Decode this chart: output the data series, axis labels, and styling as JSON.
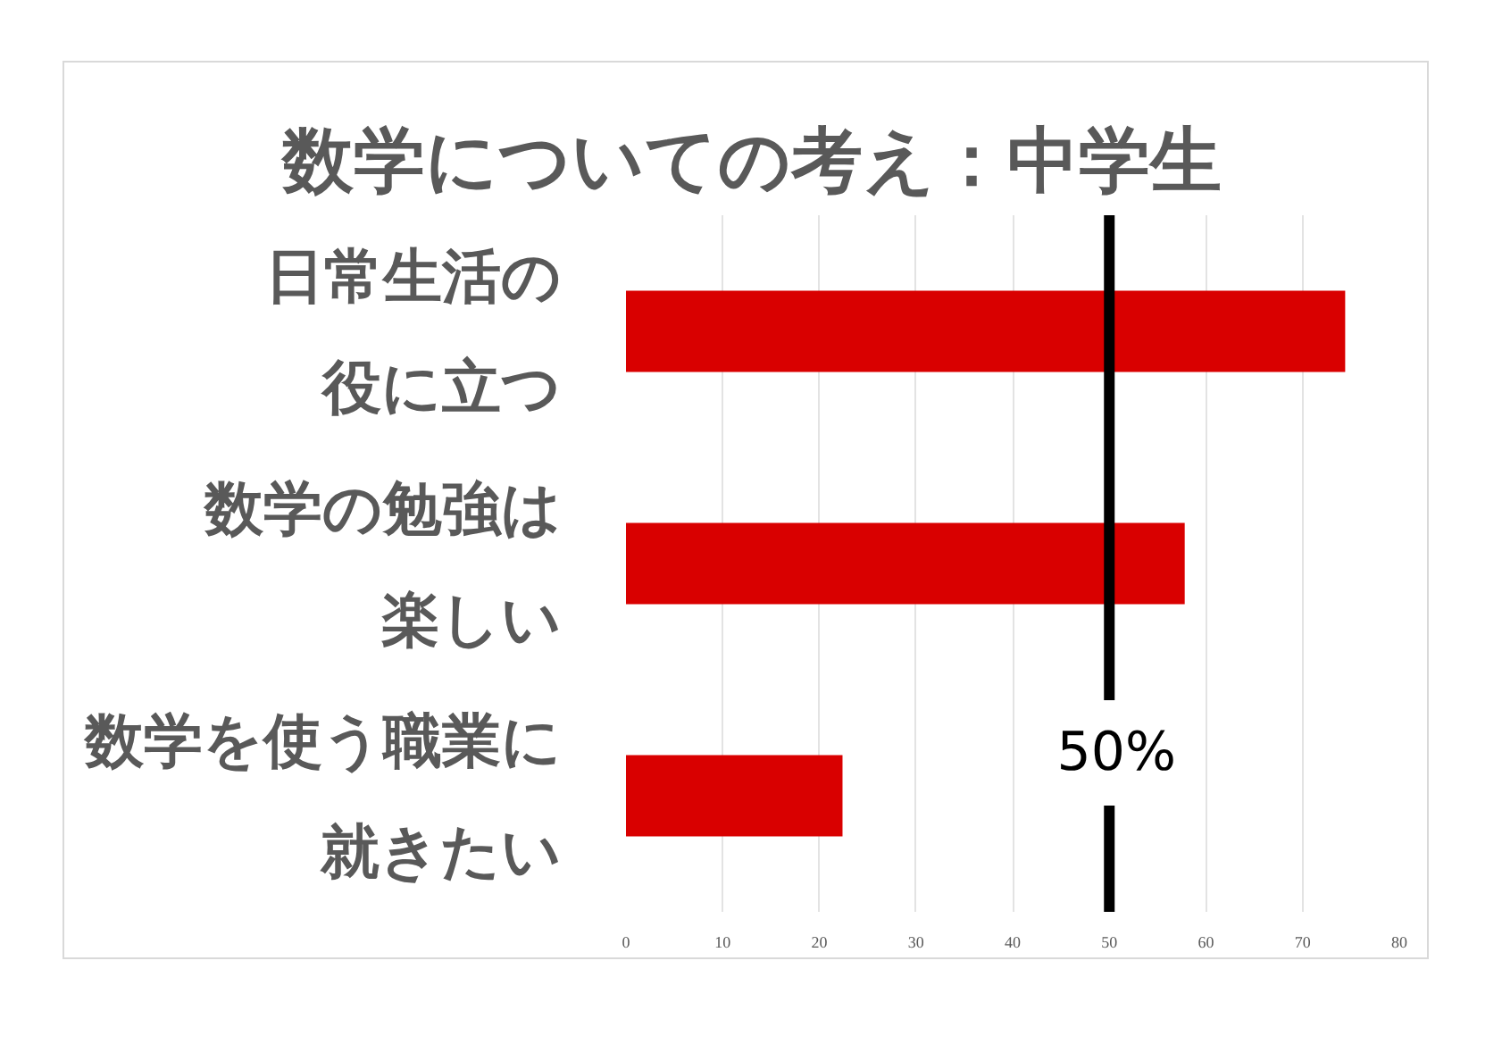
{
  "chart_data": {
    "type": "bar",
    "orientation": "horizontal",
    "title": "数学についての考え：中学生",
    "categories": [
      "日常生活の役に立つ",
      "数学の勉強は楽しい",
      "数学を使う職業に就きたい"
    ],
    "values": [
      74.4,
      57.8,
      22.4
    ],
    "color": "#d90000",
    "xlim": [
      0,
      80
    ],
    "xticks": [
      0,
      10,
      20,
      30,
      40,
      50,
      60,
      70,
      80
    ],
    "grid": "x",
    "ref_lines": [
      {
        "axis": "x",
        "value": 50,
        "label": "50%",
        "color": "#000000"
      }
    ]
  }
}
